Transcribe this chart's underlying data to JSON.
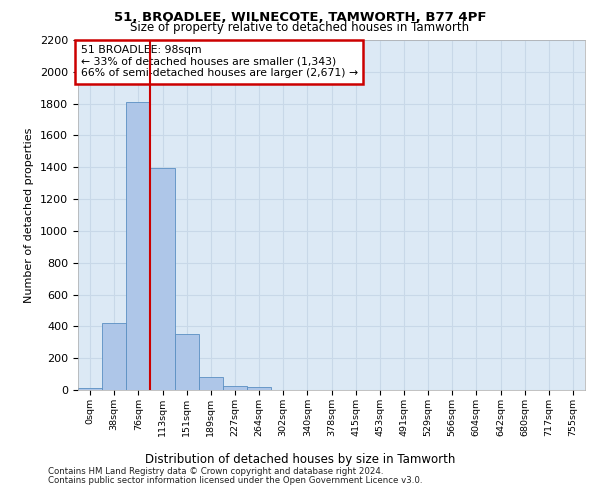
{
  "title1": "51, BROADLEE, WILNECOTE, TAMWORTH, B77 4PF",
  "title2": "Size of property relative to detached houses in Tamworth",
  "xlabel": "Distribution of detached houses by size in Tamworth",
  "ylabel": "Number of detached properties",
  "bar_labels": [
    "0sqm",
    "38sqm",
    "76sqm",
    "113sqm",
    "151sqm",
    "189sqm",
    "227sqm",
    "264sqm",
    "302sqm",
    "340sqm",
    "378sqm",
    "415sqm",
    "453sqm",
    "491sqm",
    "529sqm",
    "566sqm",
    "604sqm",
    "642sqm",
    "680sqm",
    "717sqm",
    "755sqm"
  ],
  "bar_values": [
    15,
    420,
    1810,
    1395,
    355,
    80,
    28,
    18,
    0,
    0,
    0,
    0,
    0,
    0,
    0,
    0,
    0,
    0,
    0,
    0,
    0
  ],
  "bar_color": "#aec6e8",
  "bar_edge_color": "#5a8fc2",
  "vline_x": 2.5,
  "vline_color": "#cc0000",
  "annotation_text": "51 BROADLEE: 98sqm\n← 33% of detached houses are smaller (1,343)\n66% of semi-detached houses are larger (2,671) →",
  "annotation_box_color": "#ffffff",
  "annotation_box_edge_color": "#cc0000",
  "ylim": [
    0,
    2200
  ],
  "yticks": [
    0,
    200,
    400,
    600,
    800,
    1000,
    1200,
    1400,
    1600,
    1800,
    2000,
    2200
  ],
  "grid_color": "#c8d8e8",
  "bg_color": "#dce9f5",
  "footer1": "Contains HM Land Registry data © Crown copyright and database right 2024.",
  "footer2": "Contains public sector information licensed under the Open Government Licence v3.0."
}
